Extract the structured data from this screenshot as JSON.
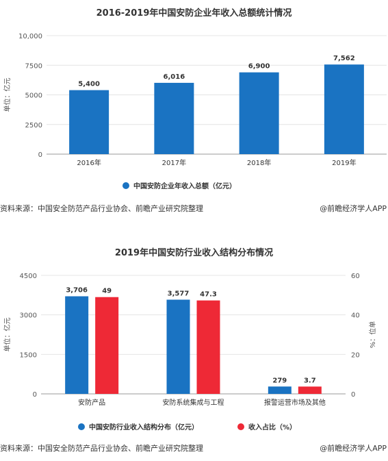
{
  "chart_data": [
    {
      "type": "bar",
      "title": "2016-2019年中国安防企业年收入总额统计情况",
      "categories": [
        "2016年",
        "2017年",
        "2018年",
        "2019年"
      ],
      "series": [
        {
          "name": "中国安防企业年收入总额（亿元）",
          "values": [
            5400,
            6016,
            6900,
            7562
          ],
          "labels": [
            "5,400",
            "6,016",
            "6,900",
            "7,562"
          ],
          "color": "#1a73c2"
        }
      ],
      "ylabel": "单位：亿元",
      "ylim": [
        0,
        10000
      ],
      "yticks": [
        0,
        2500,
        5000,
        7500,
        10000
      ],
      "ytick_labels": [
        "0",
        "2500",
        "5000",
        "7500",
        "10,000"
      ],
      "grid": true,
      "legend": "bottom"
    },
    {
      "type": "bar",
      "title": "2019年中国安防行业收入结构分布情况",
      "categories": [
        "安防产品",
        "安防系统集成与工程",
        "报警运营市场及其他"
      ],
      "series": [
        {
          "name": "中国安防行业收入结构分布（亿元）",
          "values": [
            3706,
            3577,
            279
          ],
          "labels": [
            "3,706",
            "3,577",
            "279"
          ],
          "color": "#1a73c2",
          "axis": "left"
        },
        {
          "name": "收入占比（%）",
          "values": [
            49,
            47.3,
            3.7
          ],
          "labels": [
            "49",
            "47.3",
            "3.7"
          ],
          "color": "#ee2936",
          "axis": "right"
        }
      ],
      "ylabel": "单位：亿元",
      "ylabel_right": "%：位单",
      "ylim": [
        0,
        4500
      ],
      "yticks": [
        0,
        1500,
        3000,
        4500
      ],
      "ylim_right": [
        0,
        60
      ],
      "yticks_right": [
        0,
        20,
        40,
        60
      ],
      "grid": true,
      "legend": "bottom"
    }
  ],
  "footer": {
    "source": "资料来源：中国安全防范产品行业协会、前瞻产业研究院整理",
    "credit": "@前瞻经济学人APP"
  }
}
